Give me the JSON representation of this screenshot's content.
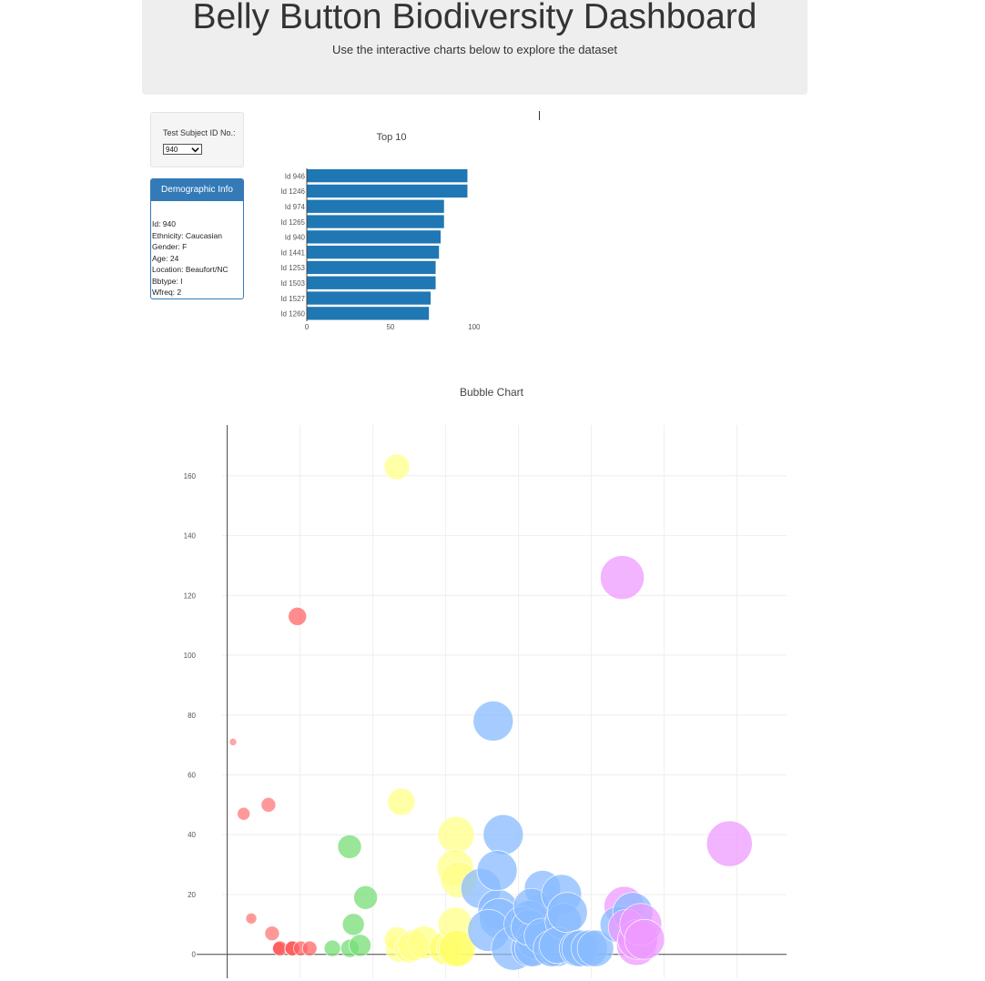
{
  "header": {
    "title": "Belly Button Biodiversity Dashboard",
    "subtitle": "Use the interactive charts below to explore the dataset"
  },
  "selector": {
    "label": "Test Subject ID No.:",
    "selected": "940",
    "icon": "chevron-down-icon"
  },
  "demographics": {
    "heading": "Demographic Info",
    "lines": [
      "Id: 940",
      "Ethnicity: Caucasian",
      "Gender: F",
      "Age: 24",
      "Location: Beaufort/NC",
      "Bbtype: I",
      "Wfreq: 2"
    ]
  },
  "colors": {
    "bar": "#1f77b4",
    "panel": "#337ab7"
  },
  "chart_data": [
    {
      "type": "bar",
      "orientation": "horizontal",
      "title": "Top 10",
      "categories": [
        "Id 946",
        "Id 1246",
        "Id 974",
        "Id 1265",
        "Id 940",
        "Id 1441",
        "Id 1253",
        "Id 1503",
        "Id 1527",
        "Id 1260"
      ],
      "values": [
        96,
        96,
        82,
        82,
        80,
        79,
        77,
        77,
        74,
        73
      ],
      "xlim": [
        0,
        105
      ],
      "xticks": [
        0,
        50,
        100
      ],
      "color": "#1f77b4"
    },
    {
      "type": "scatter",
      "subtype": "bubble",
      "title": "Bubble Chart",
      "xlim": [
        -35,
        3840
      ],
      "ylim": [
        -8,
        177
      ],
      "yticks": [
        0,
        20,
        40,
        60,
        80,
        100,
        120,
        140,
        160
      ],
      "xgrid": [
        0,
        500,
        1000,
        1500,
        2000,
        2500,
        3000,
        3500
      ],
      "grid": true,
      "x": [
        40,
        113,
        165,
        283,
        308,
        352,
        362,
        445,
        447,
        482,
        505,
        566,
        722,
        842,
        840,
        866,
        912,
        950,
        1165,
        1179,
        1195,
        1166,
        1249,
        1280,
        1351,
        1500,
        1562,
        1567,
        1579,
        1571,
        1565,
        1590,
        1742,
        1826,
        1895,
        1859,
        1868,
        1795,
        1964,
        1853,
        2159,
        2165,
        2075,
        2075,
        2025,
        2122,
        2098,
        2074,
        2090,
        2164,
        2261,
        2295,
        2226,
        2307,
        2268,
        2335,
        2405,
        2422,
        2486,
        2528,
        2725,
        2712,
        2685,
        2784,
        2741,
        2811,
        2818,
        2839,
        2865,
        3448
      ],
      "y": [
        71,
        47,
        12,
        50,
        7,
        2,
        2,
        2,
        2,
        113,
        2,
        2,
        2,
        2,
        36,
        10,
        3,
        19,
        163,
        2,
        51,
        5,
        2,
        3,
        4,
        2,
        2,
        10,
        2,
        40,
        29,
        25,
        22,
        78,
        40,
        15,
        12,
        8,
        2,
        28,
        14,
        22,
        12,
        2,
        10,
        5,
        2,
        9,
        16,
        6,
        2,
        20,
        2,
        11,
        3,
        14,
        2,
        2,
        2,
        2,
        16,
        126,
        10,
        14,
        9,
        3,
        5,
        10,
        5,
        37
      ],
      "sizes": [
        4,
        7,
        6,
        8,
        8,
        7,
        8,
        8,
        8,
        10,
        8,
        8,
        9,
        10,
        13,
        12,
        12,
        13,
        14,
        15,
        15,
        14,
        16,
        17,
        18,
        18,
        20,
        19,
        20,
        20,
        20,
        20,
        22,
        22,
        22,
        22,
        22,
        23,
        24,
        22,
        20,
        20,
        20,
        20,
        20,
        22,
        20,
        20,
        20,
        20,
        20,
        22,
        20,
        20,
        20,
        22,
        20,
        20,
        20,
        20,
        22,
        24,
        20,
        22,
        20,
        22,
        22,
        23,
        22,
        25
      ],
      "colors": [
        "#f88",
        "#f77",
        "#f77",
        "#f77",
        "#f77",
        "#f55",
        "#f55",
        "#f55",
        "#f55",
        "#f66",
        "#f66",
        "#f66",
        "#7d7",
        "#7d7",
        "#7d7",
        "#7d7",
        "#7d7",
        "#7d7",
        "#ff8",
        "#ff8",
        "#ff8",
        "#ff8",
        "#ff8",
        "#ff8",
        "#ff8",
        "#ff6",
        "#ff8",
        "#ff8",
        "#ff6",
        "#ff8",
        "#ff8",
        "#ff8",
        "#8bf",
        "#8bf",
        "#8bf",
        "#8bf",
        "#8bf",
        "#8bf",
        "#8bf",
        "#8bf",
        "#8bf",
        "#8bf",
        "#8bf",
        "#8bf",
        "#8bf",
        "#8bf",
        "#8bf",
        "#8bf",
        "#8bf",
        "#8bf",
        "#8bf",
        "#8bf",
        "#8bf",
        "#8bf",
        "#8bf",
        "#8bf",
        "#8bf",
        "#8bf",
        "#8bf",
        "#8bf",
        "#e9f",
        "#e9f",
        "#8bf",
        "#8bf",
        "#e9f",
        "#e9f",
        "#e9f",
        "#e9f",
        "#e9f",
        "#e9f"
      ]
    }
  ]
}
